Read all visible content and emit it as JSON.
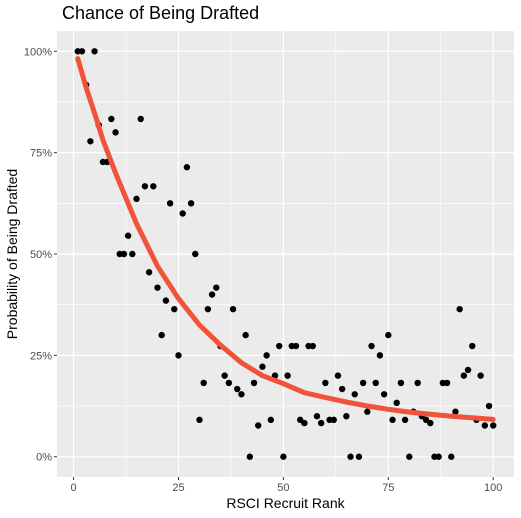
{
  "chart_data": {
    "type": "scatter",
    "title": "Chance of Being Drafted",
    "xlabel": "RSCI Recruit Rank",
    "ylabel": "Probability of Being Drafted",
    "xlim": [
      -3.95,
      104.95
    ],
    "ylim": [
      -0.05,
      1.05
    ],
    "x_ticks": [
      0,
      25,
      50,
      75,
      100
    ],
    "x_tick_labels": [
      "0",
      "25",
      "50",
      "75",
      "100"
    ],
    "y_ticks": [
      0,
      0.25,
      0.5,
      0.75,
      1.0
    ],
    "y_tick_labels": [
      "0%",
      "25%",
      "50%",
      "75%",
      "100%"
    ],
    "grid": true,
    "background": "#ebebeb",
    "grid_color": "#ffffff",
    "point_color": "#000000",
    "fit_color": "#f0533a",
    "points": [
      [
        1,
        1.0
      ],
      [
        2,
        1.0
      ],
      [
        3,
        0.917
      ],
      [
        4,
        0.778
      ],
      [
        5,
        1.0
      ],
      [
        6,
        0.818
      ],
      [
        7,
        0.727
      ],
      [
        8,
        0.727
      ],
      [
        9,
        0.833
      ],
      [
        10,
        0.8
      ],
      [
        11,
        0.5
      ],
      [
        12,
        0.5
      ],
      [
        13,
        0.545
      ],
      [
        14,
        0.5
      ],
      [
        15,
        0.636
      ],
      [
        16,
        0.833
      ],
      [
        17,
        0.667
      ],
      [
        18,
        0.455
      ],
      [
        19,
        0.667
      ],
      [
        20,
        0.417
      ],
      [
        21,
        0.3
      ],
      [
        22,
        0.385
      ],
      [
        23,
        0.625
      ],
      [
        24,
        0.364
      ],
      [
        25,
        0.25
      ],
      [
        26,
        0.6
      ],
      [
        27,
        0.714
      ],
      [
        28,
        0.625
      ],
      [
        29,
        0.5
      ],
      [
        30,
        0.091
      ],
      [
        31,
        0.182
      ],
      [
        32,
        0.364
      ],
      [
        33,
        0.4
      ],
      [
        34,
        0.417
      ],
      [
        35,
        0.273
      ],
      [
        36,
        0.2
      ],
      [
        37,
        0.182
      ],
      [
        38,
        0.364
      ],
      [
        39,
        0.167
      ],
      [
        40,
        0.154
      ],
      [
        41,
        0.3
      ],
      [
        42,
        0.0
      ],
      [
        43,
        0.182
      ],
      [
        44,
        0.077
      ],
      [
        45,
        0.222
      ],
      [
        46,
        0.25
      ],
      [
        47,
        0.091
      ],
      [
        48,
        0.2
      ],
      [
        49,
        0.273
      ],
      [
        50,
        0.0
      ],
      [
        51,
        0.2
      ],
      [
        52,
        0.273
      ],
      [
        53,
        0.273
      ],
      [
        54,
        0.091
      ],
      [
        55,
        0.083
      ],
      [
        56,
        0.273
      ],
      [
        57,
        0.273
      ],
      [
        58,
        0.1
      ],
      [
        59,
        0.083
      ],
      [
        60,
        0.182
      ],
      [
        61,
        0.091
      ],
      [
        62,
        0.091
      ],
      [
        63,
        0.2
      ],
      [
        64,
        0.167
      ],
      [
        65,
        0.1
      ],
      [
        66,
        0.0
      ],
      [
        67,
        0.154
      ],
      [
        68,
        0.0
      ],
      [
        69,
        0.182
      ],
      [
        70,
        0.111
      ],
      [
        71,
        0.273
      ],
      [
        72,
        0.182
      ],
      [
        73,
        0.25
      ],
      [
        74,
        0.154
      ],
      [
        75,
        0.3
      ],
      [
        76,
        0.091
      ],
      [
        77,
        0.133
      ],
      [
        78,
        0.182
      ],
      [
        79,
        0.091
      ],
      [
        80,
        0.0
      ],
      [
        81,
        0.111
      ],
      [
        82,
        0.182
      ],
      [
        83,
        0.1
      ],
      [
        84,
        0.091
      ],
      [
        85,
        0.083
      ],
      [
        86,
        0.0
      ],
      [
        87,
        0.0
      ],
      [
        88,
        0.182
      ],
      [
        89,
        0.182
      ],
      [
        90,
        0.0
      ],
      [
        91,
        0.111
      ],
      [
        92,
        0.364
      ],
      [
        93,
        0.2
      ],
      [
        94,
        0.214
      ],
      [
        95,
        0.273
      ],
      [
        96,
        0.091
      ],
      [
        97,
        0.2
      ],
      [
        98,
        0.077
      ],
      [
        99,
        0.125
      ],
      [
        100,
        0.077
      ]
    ],
    "fit_curve": [
      [
        1,
        0.982
      ],
      [
        3,
        0.91
      ],
      [
        5,
        0.847
      ],
      [
        7,
        0.781
      ],
      [
        10,
        0.7
      ],
      [
        15,
        0.575
      ],
      [
        20,
        0.47
      ],
      [
        25,
        0.39
      ],
      [
        30,
        0.325
      ],
      [
        35,
        0.275
      ],
      [
        40,
        0.232
      ],
      [
        45,
        0.2
      ],
      [
        50,
        0.18
      ],
      [
        55,
        0.158
      ],
      [
        60,
        0.146
      ],
      [
        65,
        0.135
      ],
      [
        70,
        0.125
      ],
      [
        75,
        0.117
      ],
      [
        80,
        0.11
      ],
      [
        85,
        0.105
      ],
      [
        90,
        0.1
      ],
      [
        95,
        0.096
      ],
      [
        100,
        0.092
      ]
    ]
  }
}
